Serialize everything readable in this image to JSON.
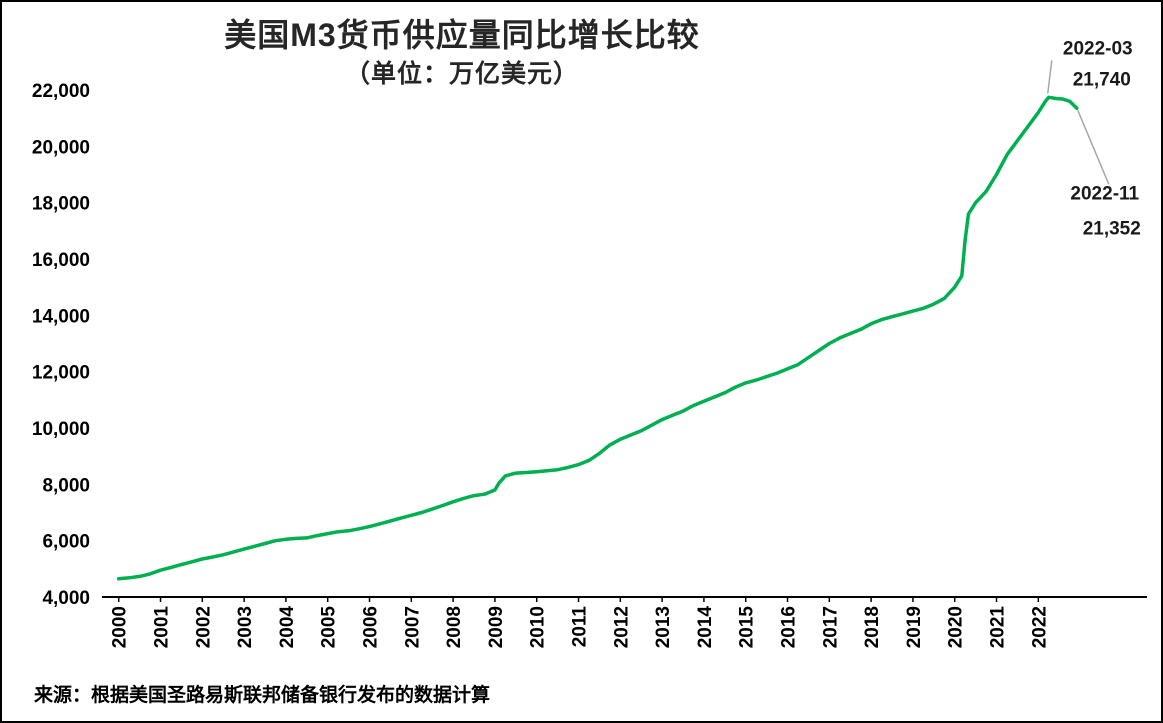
{
  "chart_data": {
    "type": "line",
    "title": "美国M3货币供应量同比增长比较",
    "subtitle": "（单位：万亿美元）",
    "source": "来源：根据美国圣路易斯联邦储备银行发布的数据计算",
    "grid": false,
    "legend": "none",
    "xlim": [
      2000,
      2023
    ],
    "ylim": [
      4000,
      22000
    ],
    "y_ticks": [
      4000,
      6000,
      8000,
      10000,
      12000,
      14000,
      16000,
      18000,
      20000,
      22000
    ],
    "x_ticks": [
      2000,
      2001,
      2002,
      2003,
      2004,
      2005,
      2006,
      2007,
      2008,
      2009,
      2010,
      2011,
      2012,
      2013,
      2014,
      2015,
      2016,
      2017,
      2018,
      2019,
      2020,
      2021,
      2022
    ],
    "series": [
      {
        "name": "美国M3货币供应量",
        "color": "#00B050",
        "points": [
          [
            2000.0,
            4650
          ],
          [
            2000.25,
            4680
          ],
          [
            2000.5,
            4730
          ],
          [
            2000.75,
            4820
          ],
          [
            2001.0,
            4950
          ],
          [
            2001.25,
            5050
          ],
          [
            2001.5,
            5150
          ],
          [
            2001.75,
            5250
          ],
          [
            2002.0,
            5350
          ],
          [
            2002.25,
            5420
          ],
          [
            2002.5,
            5500
          ],
          [
            2002.75,
            5600
          ],
          [
            2003.0,
            5700
          ],
          [
            2003.25,
            5800
          ],
          [
            2003.5,
            5900
          ],
          [
            2003.75,
            6000
          ],
          [
            2004.0,
            6050
          ],
          [
            2004.25,
            6080
          ],
          [
            2004.5,
            6100
          ],
          [
            2004.75,
            6180
          ],
          [
            2005.0,
            6250
          ],
          [
            2005.25,
            6320
          ],
          [
            2005.5,
            6350
          ],
          [
            2005.75,
            6420
          ],
          [
            2006.0,
            6500
          ],
          [
            2006.25,
            6600
          ],
          [
            2006.5,
            6700
          ],
          [
            2006.75,
            6800
          ],
          [
            2007.0,
            6900
          ],
          [
            2007.25,
            7000
          ],
          [
            2007.5,
            7120
          ],
          [
            2007.75,
            7250
          ],
          [
            2008.0,
            7380
          ],
          [
            2008.25,
            7500
          ],
          [
            2008.5,
            7600
          ],
          [
            2008.75,
            7650
          ],
          [
            2009.0,
            7800
          ],
          [
            2009.1,
            8050
          ],
          [
            2009.25,
            8300
          ],
          [
            2009.5,
            8400
          ],
          [
            2009.75,
            8420
          ],
          [
            2010.0,
            8450
          ],
          [
            2010.25,
            8480
          ],
          [
            2010.5,
            8520
          ],
          [
            2010.75,
            8600
          ],
          [
            2011.0,
            8700
          ],
          [
            2011.25,
            8850
          ],
          [
            2011.5,
            9100
          ],
          [
            2011.75,
            9400
          ],
          [
            2012.0,
            9600
          ],
          [
            2012.25,
            9750
          ],
          [
            2012.5,
            9900
          ],
          [
            2012.75,
            10100
          ],
          [
            2013.0,
            10300
          ],
          [
            2013.25,
            10450
          ],
          [
            2013.5,
            10600
          ],
          [
            2013.75,
            10800
          ],
          [
            2014.0,
            10950
          ],
          [
            2014.25,
            11100
          ],
          [
            2014.5,
            11250
          ],
          [
            2014.75,
            11450
          ],
          [
            2015.0,
            11600
          ],
          [
            2015.25,
            11700
          ],
          [
            2015.75,
            11950
          ],
          [
            2016.0,
            12100
          ],
          [
            2016.25,
            12250
          ],
          [
            2016.5,
            12500
          ],
          [
            2016.75,
            12750
          ],
          [
            2017.0,
            13000
          ],
          [
            2017.25,
            13200
          ],
          [
            2017.5,
            13350
          ],
          [
            2017.75,
            13500
          ],
          [
            2018.0,
            13700
          ],
          [
            2018.25,
            13850
          ],
          [
            2018.5,
            13950
          ],
          [
            2018.75,
            14050
          ],
          [
            2019.0,
            14150
          ],
          [
            2019.25,
            14250
          ],
          [
            2019.5,
            14400
          ],
          [
            2019.75,
            14600
          ],
          [
            2020.0,
            15000
          ],
          [
            2020.17,
            15400
          ],
          [
            2020.25,
            16700
          ],
          [
            2020.33,
            17600
          ],
          [
            2020.5,
            18000
          ],
          [
            2020.75,
            18400
          ],
          [
            2021.0,
            19000
          ],
          [
            2021.25,
            19700
          ],
          [
            2021.5,
            20200
          ],
          [
            2021.75,
            20700
          ],
          [
            2022.0,
            21200
          ],
          [
            2022.17,
            21600
          ],
          [
            2022.25,
            21740
          ],
          [
            2022.42,
            21700
          ],
          [
            2022.58,
            21680
          ],
          [
            2022.75,
            21600
          ],
          [
            2022.92,
            21352
          ]
        ]
      }
    ],
    "annotations": [
      {
        "id": "peak",
        "date": "2022-03",
        "value_label": "21,740",
        "x": 2022.25,
        "y": 21740
      },
      {
        "id": "latest",
        "date": "2022-11",
        "value_label": "21,352",
        "x": 2022.92,
        "y": 21352
      }
    ]
  }
}
